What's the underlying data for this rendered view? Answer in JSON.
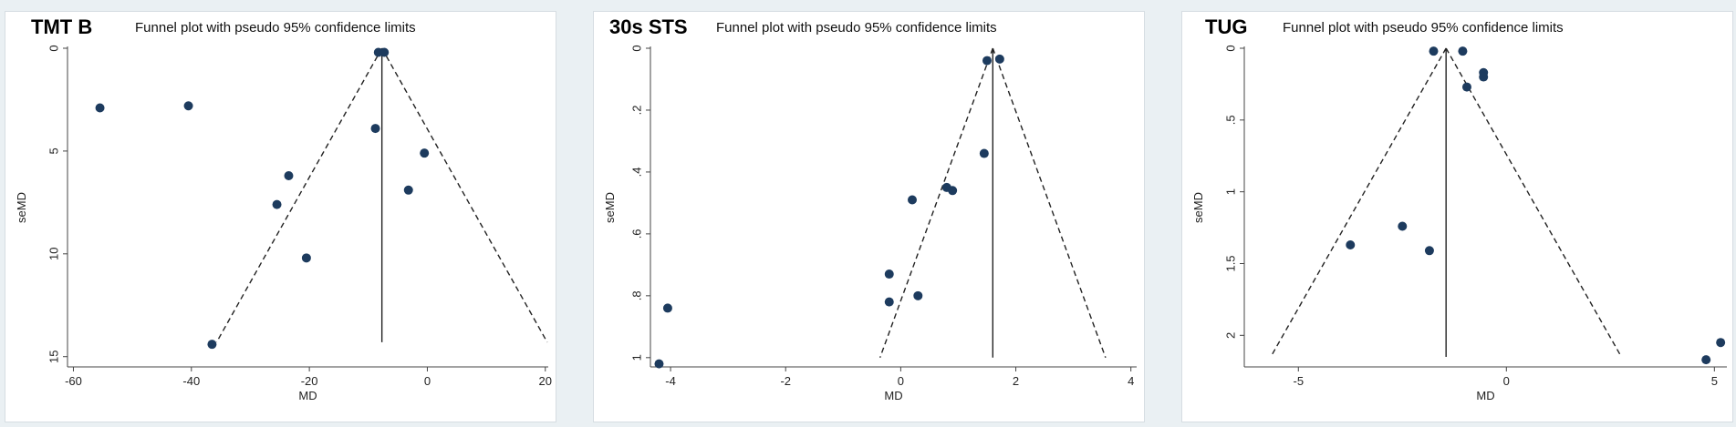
{
  "chart_data": [
    {
      "type": "scatter",
      "label": "TMT B",
      "title": "Funnel plot with pseudo 95% confidence limits",
      "xlabel": "MD",
      "ylabel": "seMD",
      "xlim": [
        -61,
        20.5
      ],
      "ylim": [
        0,
        15.5
      ],
      "y_reversed": true,
      "xticks": [
        -60,
        -40,
        -20,
        0,
        20
      ],
      "yticks": [
        0,
        5,
        10,
        15
      ],
      "pooled": -7.7,
      "funnel_ymax": 14.3,
      "points": [
        {
          "x": -55.5,
          "y": 2.9
        },
        {
          "x": -40.5,
          "y": 2.8
        },
        {
          "x": -8.3,
          "y": 0.2
        },
        {
          "x": -7.3,
          "y": 0.2
        },
        {
          "x": -8.8,
          "y": 3.9
        },
        {
          "x": -0.5,
          "y": 5.1
        },
        {
          "x": -23.5,
          "y": 6.2
        },
        {
          "x": -25.5,
          "y": 7.6
        },
        {
          "x": -3.2,
          "y": 6.9
        },
        {
          "x": -20.5,
          "y": 10.2
        },
        {
          "x": -36.5,
          "y": 14.4
        }
      ]
    },
    {
      "type": "scatter",
      "label": "30s STS",
      "title": "Funnel plot with pseudo 95% confidence limits",
      "xlabel": "MD",
      "ylabel": "seMD",
      "xlim": [
        -4.35,
        4.1
      ],
      "ylim": [
        0,
        1.03
      ],
      "y_reversed": true,
      "xticks": [
        -4,
        -2,
        0,
        2,
        4
      ],
      "yticks": [
        0,
        0.2,
        0.4,
        0.6,
        0.8,
        1
      ],
      "ytick_labels": [
        "0",
        ".2",
        ".4",
        ".6",
        ".8",
        "1"
      ],
      "pooled": 1.6,
      "funnel_ymax": 1.0,
      "points": [
        {
          "x": 1.5,
          "y": 0.04
        },
        {
          "x": 1.72,
          "y": 0.035
        },
        {
          "x": 1.45,
          "y": 0.34
        },
        {
          "x": 0.8,
          "y": 0.45
        },
        {
          "x": 0.9,
          "y": 0.46
        },
        {
          "x": 0.2,
          "y": 0.49
        },
        {
          "x": -0.2,
          "y": 0.73
        },
        {
          "x": -0.2,
          "y": 0.82
        },
        {
          "x": 0.3,
          "y": 0.8
        },
        {
          "x": -4.05,
          "y": 0.84
        },
        {
          "x": -4.2,
          "y": 1.02
        }
      ]
    },
    {
      "type": "scatter",
      "label": "TUG",
      "title": "Funnel plot with pseudo 95% confidence limits",
      "xlabel": "MD",
      "ylabel": "seMD",
      "xlim": [
        -6.3,
        5.3
      ],
      "ylim": [
        0,
        2.22
      ],
      "y_reversed": true,
      "xticks": [
        -5,
        0,
        5
      ],
      "yticks": [
        0,
        0.5,
        1,
        1.5,
        2
      ],
      "ytick_labels": [
        "0",
        ".5",
        "1",
        "1.5",
        "2"
      ],
      "pooled": -1.45,
      "funnel_ymax": 2.15,
      "points": [
        {
          "x": -1.75,
          "y": 0.02
        },
        {
          "x": -1.05,
          "y": 0.02
        },
        {
          "x": -0.55,
          "y": 0.17
        },
        {
          "x": -0.55,
          "y": 0.2
        },
        {
          "x": -0.95,
          "y": 0.27
        },
        {
          "x": -3.75,
          "y": 1.37
        },
        {
          "x": -2.5,
          "y": 1.24
        },
        {
          "x": -1.85,
          "y": 1.41
        },
        {
          "x": 5.15,
          "y": 2.05
        },
        {
          "x": 4.8,
          "y": 2.17
        }
      ]
    }
  ]
}
